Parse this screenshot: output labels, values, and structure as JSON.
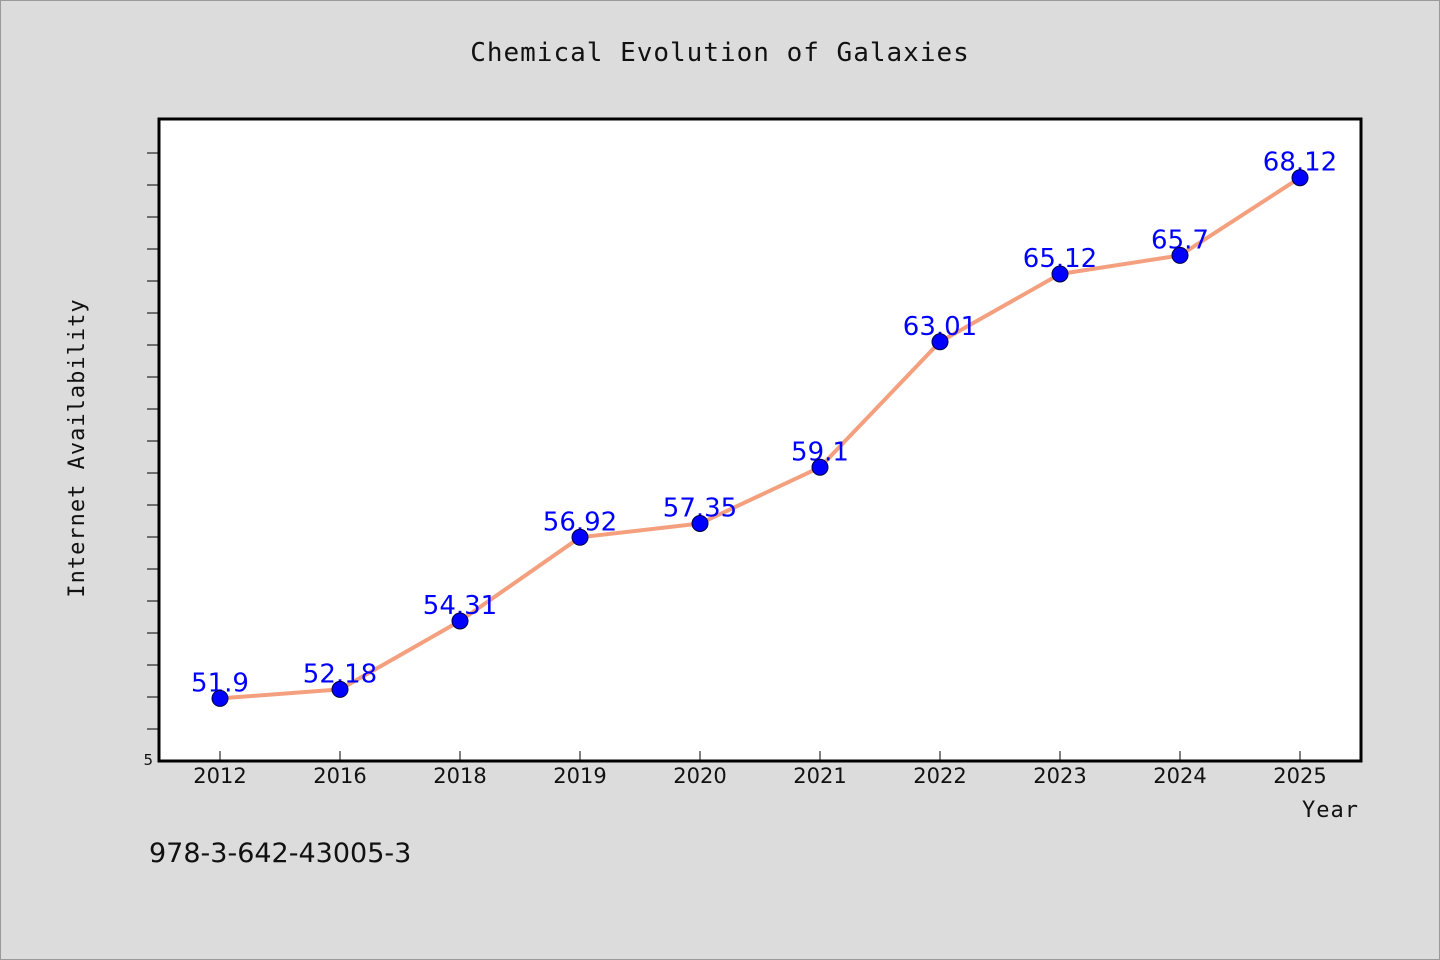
{
  "chart_data": {
    "type": "line",
    "title": "Chemical Evolution of Galaxies",
    "xlabel": "Year",
    "ylabel": "Internet Availability",
    "categories": [
      "2012",
      "2016",
      "2018",
      "2019",
      "2020",
      "2021",
      "2022",
      "2023",
      "2024",
      "2025"
    ],
    "series": [
      {
        "values": [
          51.9,
          52.18,
          54.31,
          56.92,
          57.35,
          59.1,
          63.01,
          65.12,
          65.7,
          68.12
        ],
        "labels": [
          "51.9",
          "52.18",
          "54.31",
          "56.92",
          "57.35",
          "59.1",
          "63.01",
          "65.12",
          "65.7",
          "68.12"
        ],
        "line_color": "#f4a07e",
        "marker_color": "#0000ff"
      }
    ],
    "y_min_label": "5",
    "ylim": [
      49.95,
      69.95
    ],
    "grid": false,
    "legend": "none"
  },
  "footer": {
    "isbn": "978-3-642-43005-3"
  }
}
